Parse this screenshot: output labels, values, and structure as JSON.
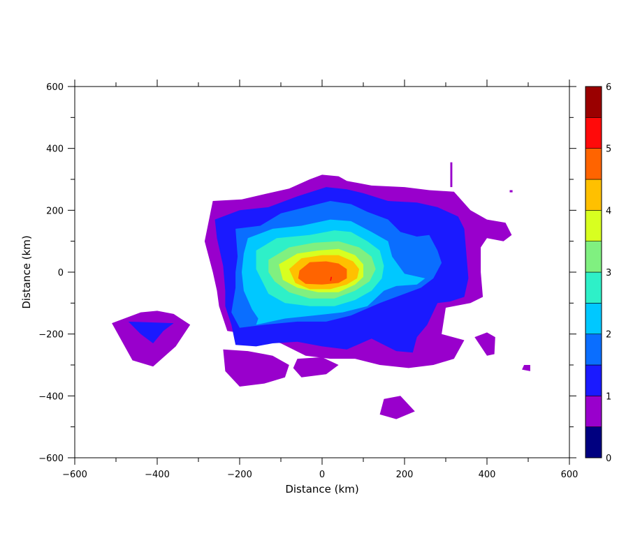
{
  "chart_data": {
    "type": "contour",
    "title": "",
    "xlabel": "Distance (km)",
    "ylabel": "Distance (km)",
    "xlim": [
      -600,
      600
    ],
    "ylim": [
      -600,
      600
    ],
    "xticks": [
      -600,
      -400,
      -200,
      0,
      200,
      400,
      600
    ],
    "yticks": [
      -600,
      -400,
      -200,
      0,
      200,
      400,
      600
    ],
    "xtick_labels": [
      "−600",
      "−400",
      "−200",
      "0",
      "200",
      "400",
      "600"
    ],
    "ytick_labels": [
      "−600",
      "−400",
      "−200",
      "0",
      "200",
      "400",
      "600"
    ],
    "grid": false,
    "colorbar": {
      "levels": [
        0,
        0.5,
        1,
        1.5,
        2,
        2.5,
        3,
        3.5,
        4,
        4.5,
        5,
        5.5,
        6
      ],
      "colors": [
        "#000080",
        "#9900cc",
        "#1a1aff",
        "#0a6eff",
        "#00c8ff",
        "#2ef0c8",
        "#80f080",
        "#d8ff20",
        "#ffc000",
        "#ff6400",
        "#ff0a0a",
        "#9a0000"
      ],
      "tick_values": [
        0,
        1,
        2,
        3,
        4,
        5,
        6
      ],
      "tick_labels": [
        "0",
        "1",
        "2",
        "3",
        "4",
        "5",
        "6"
      ]
    },
    "contour_regions": [
      {
        "level": 0.5,
        "polygon": [
          [
            -265,
            230
          ],
          [
            -195,
            235
          ],
          [
            -130,
            255
          ],
          [
            -80,
            270
          ],
          [
            -30,
            300
          ],
          [
            0,
            315
          ],
          [
            40,
            310
          ],
          [
            60,
            295
          ],
          [
            120,
            280
          ],
          [
            200,
            275
          ],
          [
            260,
            265
          ],
          [
            320,
            260
          ],
          [
            360,
            200
          ],
          [
            400,
            170
          ],
          [
            445,
            160
          ],
          [
            460,
            120
          ],
          [
            440,
            100
          ],
          [
            400,
            110
          ],
          [
            385,
            80
          ],
          [
            385,
            0
          ],
          [
            390,
            -80
          ],
          [
            360,
            -100
          ],
          [
            300,
            -115
          ],
          [
            290,
            -200
          ],
          [
            345,
            -220
          ],
          [
            320,
            -280
          ],
          [
            270,
            -300
          ],
          [
            210,
            -310
          ],
          [
            140,
            -300
          ],
          [
            80,
            -280
          ],
          [
            20,
            -280
          ],
          [
            -40,
            -270
          ],
          [
            -100,
            -230
          ],
          [
            -180,
            -200
          ],
          [
            -230,
            -190
          ],
          [
            -250,
            -110
          ],
          [
            -255,
            -60
          ],
          [
            -265,
            0
          ],
          [
            -285,
            100
          ]
        ]
      },
      {
        "level": 0.5,
        "polygon": [
          [
            -510,
            -165
          ],
          [
            -440,
            -130
          ],
          [
            -400,
            -125
          ],
          [
            -360,
            -135
          ],
          [
            -320,
            -170
          ],
          [
            -355,
            -240
          ],
          [
            -410,
            -305
          ],
          [
            -460,
            -285
          ]
        ]
      },
      {
        "level": 0.5,
        "polygon": [
          [
            -240,
            -250
          ],
          [
            -180,
            -255
          ],
          [
            -120,
            -270
          ],
          [
            -80,
            -300
          ],
          [
            -90,
            -340
          ],
          [
            -140,
            -360
          ],
          [
            -200,
            -370
          ],
          [
            -235,
            -320
          ]
        ]
      },
      {
        "level": 0.5,
        "polygon": [
          [
            -60,
            -280
          ],
          [
            0,
            -275
          ],
          [
            40,
            -300
          ],
          [
            10,
            -330
          ],
          [
            -50,
            -340
          ],
          [
            -70,
            -310
          ]
        ]
      },
      {
        "level": 0.5,
        "polygon": [
          [
            150,
            -410
          ],
          [
            190,
            -400
          ],
          [
            225,
            -450
          ],
          [
            180,
            -475
          ],
          [
            140,
            -460
          ]
        ]
      },
      {
        "level": 0.5,
        "polygon": [
          [
            370,
            -210
          ],
          [
            400,
            -195
          ],
          [
            420,
            -210
          ],
          [
            418,
            -265
          ],
          [
            400,
            -270
          ]
        ]
      },
      {
        "level": 0.5,
        "polygon": [
          [
            490,
            -300
          ],
          [
            505,
            -300
          ],
          [
            505,
            -320
          ],
          [
            485,
            -315
          ]
        ]
      },
      {
        "level": 0.5,
        "polygon": [
          [
            311,
            355
          ],
          [
            316,
            355
          ],
          [
            316,
            275
          ],
          [
            311,
            275
          ]
        ]
      },
      {
        "level": 0.5,
        "polygon": [
          [
            455,
            265
          ],
          [
            462,
            265
          ],
          [
            462,
            258
          ],
          [
            455,
            258
          ]
        ]
      },
      {
        "level": 1.0,
        "polygon": [
          [
            -260,
            170
          ],
          [
            -200,
            200
          ],
          [
            -130,
            210
          ],
          [
            -60,
            245
          ],
          [
            10,
            275
          ],
          [
            60,
            268
          ],
          [
            100,
            255
          ],
          [
            160,
            230
          ],
          [
            230,
            225
          ],
          [
            280,
            210
          ],
          [
            330,
            180
          ],
          [
            345,
            140
          ],
          [
            350,
            60
          ],
          [
            355,
            -20
          ],
          [
            345,
            -80
          ],
          [
            310,
            -95
          ],
          [
            280,
            -100
          ],
          [
            255,
            -170
          ],
          [
            230,
            -210
          ],
          [
            220,
            -260
          ],
          [
            180,
            -255
          ],
          [
            120,
            -215
          ],
          [
            60,
            -250
          ],
          [
            0,
            -240
          ],
          [
            -60,
            -225
          ],
          [
            -120,
            -230
          ],
          [
            -160,
            -240
          ],
          [
            -210,
            -235
          ],
          [
            -220,
            -170
          ],
          [
            -235,
            -110
          ],
          [
            -235,
            -60
          ],
          [
            -240,
            20
          ],
          [
            -255,
            110
          ]
        ]
      },
      {
        "level": 1.0,
        "polygon": [
          [
            -470,
            -160
          ],
          [
            -360,
            -165
          ],
          [
            -385,
            -190
          ],
          [
            -410,
            -230
          ],
          [
            -440,
            -200
          ]
        ]
      },
      {
        "level": 1.0,
        "polygon": [
          [
            12,
            -50
          ],
          [
            22,
            -50
          ],
          [
            22,
            -60
          ],
          [
            12,
            -60
          ]
        ]
      },
      {
        "level": 1.5,
        "polygon": [
          [
            -210,
            140
          ],
          [
            -150,
            150
          ],
          [
            -100,
            190
          ],
          [
            -40,
            210
          ],
          [
            20,
            230
          ],
          [
            70,
            220
          ],
          [
            110,
            195
          ],
          [
            160,
            170
          ],
          [
            190,
            130
          ],
          [
            230,
            115
          ],
          [
            260,
            120
          ],
          [
            280,
            70
          ],
          [
            290,
            30
          ],
          [
            270,
            -20
          ],
          [
            240,
            -50
          ],
          [
            190,
            -75
          ],
          [
            140,
            -100
          ],
          [
            70,
            -140
          ],
          [
            10,
            -160
          ],
          [
            -60,
            -160
          ],
          [
            -140,
            -170
          ],
          [
            -200,
            -180
          ],
          [
            -220,
            -130
          ],
          [
            -210,
            -50
          ],
          [
            -210,
            0
          ],
          [
            -205,
            50
          ]
        ]
      },
      {
        "level": 2.0,
        "polygon": [
          [
            -180,
            110
          ],
          [
            -120,
            140
          ],
          [
            -50,
            150
          ],
          [
            20,
            170
          ],
          [
            70,
            165
          ],
          [
            120,
            130
          ],
          [
            160,
            100
          ],
          [
            170,
            50
          ],
          [
            200,
            -5
          ],
          [
            250,
            -20
          ],
          [
            230,
            -40
          ],
          [
            180,
            -45
          ],
          [
            150,
            -60
          ],
          [
            110,
            -110
          ],
          [
            50,
            -130
          ],
          [
            -20,
            -140
          ],
          [
            -90,
            -150
          ],
          [
            -160,
            -170
          ],
          [
            -155,
            -150
          ],
          [
            -170,
            -120
          ],
          [
            -190,
            -60
          ],
          [
            -195,
            0
          ],
          [
            -190,
            60
          ]
        ]
      },
      {
        "level": 2.5,
        "polygon": [
          [
            -160,
            70
          ],
          [
            -110,
            110
          ],
          [
            -30,
            120
          ],
          [
            30,
            135
          ],
          [
            70,
            130
          ],
          [
            110,
            100
          ],
          [
            140,
            70
          ],
          [
            150,
            20
          ],
          [
            145,
            -20
          ],
          [
            120,
            -60
          ],
          [
            80,
            -90
          ],
          [
            30,
            -110
          ],
          [
            -30,
            -110
          ],
          [
            -90,
            -100
          ],
          [
            -130,
            -70
          ],
          [
            -145,
            -30
          ],
          [
            -160,
            10
          ]
        ]
      },
      {
        "level": 3.0,
        "polygon": [
          [
            -130,
            40
          ],
          [
            -80,
            80
          ],
          [
            -20,
            95
          ],
          [
            40,
            100
          ],
          [
            90,
            80
          ],
          [
            120,
            50
          ],
          [
            130,
            10
          ],
          [
            115,
            -30
          ],
          [
            80,
            -60
          ],
          [
            30,
            -85
          ],
          [
            -30,
            -85
          ],
          [
            -80,
            -65
          ],
          [
            -115,
            -30
          ],
          [
            -130,
            0
          ]
        ]
      },
      {
        "level": 3.5,
        "polygon": [
          [
            -105,
            25
          ],
          [
            -60,
            60
          ],
          [
            -10,
            70
          ],
          [
            40,
            75
          ],
          [
            80,
            55
          ],
          [
            100,
            25
          ],
          [
            100,
            -15
          ],
          [
            80,
            -40
          ],
          [
            40,
            -65
          ],
          [
            -10,
            -65
          ],
          [
            -60,
            -50
          ],
          [
            -95,
            -25
          ]
        ]
      },
      {
        "level": 4.0,
        "polygon": [
          [
            -80,
            10
          ],
          [
            -50,
            45
          ],
          [
            0,
            55
          ],
          [
            40,
            55
          ],
          [
            75,
            35
          ],
          [
            90,
            10
          ],
          [
            85,
            -20
          ],
          [
            60,
            -40
          ],
          [
            20,
            -55
          ],
          [
            -30,
            -55
          ],
          [
            -65,
            -35
          ]
        ]
      },
      {
        "level": 4.5,
        "polygon": [
          [
            -55,
            5
          ],
          [
            -30,
            32
          ],
          [
            10,
            35
          ],
          [
            40,
            28
          ],
          [
            60,
            10
          ],
          [
            60,
            -20
          ],
          [
            40,
            -35
          ],
          [
            0,
            -40
          ],
          [
            -40,
            -38
          ],
          [
            -58,
            -20
          ]
        ]
      },
      {
        "level": 5.0,
        "polygon": [
          [
            21,
            -15
          ],
          [
            24,
            -15
          ],
          [
            22,
            -28
          ],
          [
            19,
            -28
          ]
        ]
      }
    ]
  }
}
